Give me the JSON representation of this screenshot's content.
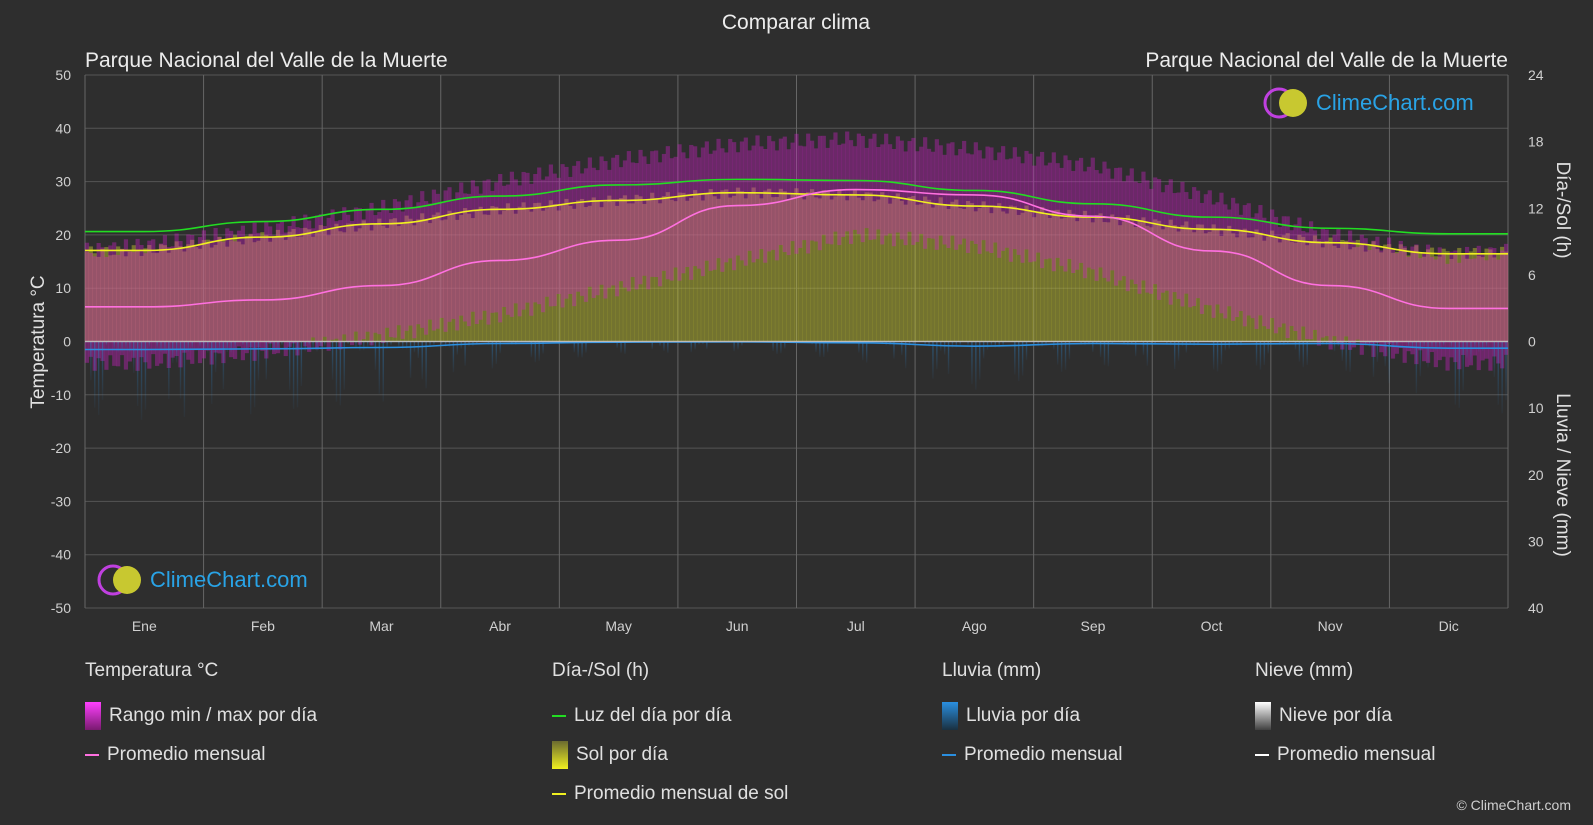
{
  "title": "Comparar clima",
  "location_left": "Parque Nacional del Valle de la Muerte",
  "location_right": "Parque Nacional del Valle de la Muerte",
  "brand": "ClimeChart.com",
  "copyright": "© ClimeChart.com",
  "colors": {
    "background": "#2e2e2e",
    "temp_range": "#d020c8",
    "temp_avg": "#ff70e0",
    "daylight": "#22dd22",
    "sun_fill": "#c8c830",
    "sun_avg": "#f0f020",
    "rain": "#2a8fe0",
    "rain_avg": "#2a8fe0",
    "snow": "#ffffff",
    "snow_avg": "#ffffff",
    "brand": "#29a3e6"
  },
  "chart_data": {
    "type": "area",
    "x_categories": [
      "Ene",
      "Feb",
      "Mar",
      "Abr",
      "May",
      "Jun",
      "Jul",
      "Ago",
      "Sep",
      "Oct",
      "Nov",
      "Dic"
    ],
    "y_left": {
      "label": "Temperatura °C",
      "range": [
        -50,
        50
      ],
      "ticks": [
        50,
        40,
        30,
        20,
        10,
        0,
        -10,
        -20,
        -30,
        -40,
        -50
      ]
    },
    "y_right_top": {
      "label": "Día-/Sol (h)",
      "range": [
        0,
        24
      ],
      "ticks": [
        24,
        18,
        12,
        6,
        0
      ]
    },
    "y_right_bottom": {
      "label": "Lluvia / Nieve (mm)",
      "range": [
        0,
        40
      ],
      "ticks": [
        10,
        20,
        30,
        40
      ]
    },
    "grid": true,
    "series": [
      {
        "name": "Promedio mensual",
        "group": "Temperatura °C",
        "unit": "°C",
        "values": [
          6.5,
          7.8,
          10.5,
          15.2,
          19,
          25.5,
          28.5,
          27.5,
          23.5,
          17,
          10.5,
          6.2
        ]
      },
      {
        "name": "Rango min / max por día",
        "group": "Temperatura °C",
        "unit": "°C",
        "min": [
          -4,
          -2,
          1,
          5,
          10,
          15,
          20,
          18,
          13,
          6,
          0,
          -4
        ],
        "max": [
          18,
          21,
          25,
          30,
          34,
          37,
          38,
          36,
          33,
          27,
          20,
          16
        ]
      },
      {
        "name": "Luz del día por día",
        "group": "Día-/Sol (h)",
        "unit": "h",
        "values": [
          9.9,
          10.8,
          11.9,
          13.1,
          14.1,
          14.6,
          14.5,
          13.6,
          12.4,
          11.2,
          10.2,
          9.7
        ]
      },
      {
        "name": "Promedio mensual de sol",
        "group": "Día-/Sol (h)",
        "unit": "h",
        "values": [
          8.2,
          9.4,
          10.6,
          11.9,
          12.7,
          13.4,
          13.2,
          12.2,
          11.2,
          10.1,
          8.9,
          7.9
        ]
      },
      {
        "name": "Promedio mensual",
        "group": "Lluvia (mm)",
        "unit": "mm",
        "values": [
          1.2,
          1.1,
          0.9,
          0.3,
          0.1,
          0.05,
          0.2,
          0.7,
          0.3,
          0.4,
          0.3,
          1.0
        ]
      },
      {
        "name": "Promedio mensual",
        "group": "Nieve (mm)",
        "unit": "mm",
        "values": [
          0,
          0,
          0,
          0,
          0,
          0,
          0,
          0,
          0,
          0,
          0,
          0
        ]
      }
    ]
  },
  "legend": {
    "temperature": {
      "title": "Temperatura °C",
      "items": [
        "Rango min / max por día",
        "Promedio mensual"
      ]
    },
    "sun": {
      "title": "Día-/Sol (h)",
      "items": [
        "Luz del día por día",
        "Sol por día",
        "Promedio mensual de sol"
      ]
    },
    "rain": {
      "title": "Lluvia (mm)",
      "items": [
        "Lluvia por día",
        "Promedio mensual"
      ]
    },
    "snow": {
      "title": "Nieve (mm)",
      "items": [
        "Nieve por día",
        "Promedio mensual"
      ]
    }
  }
}
